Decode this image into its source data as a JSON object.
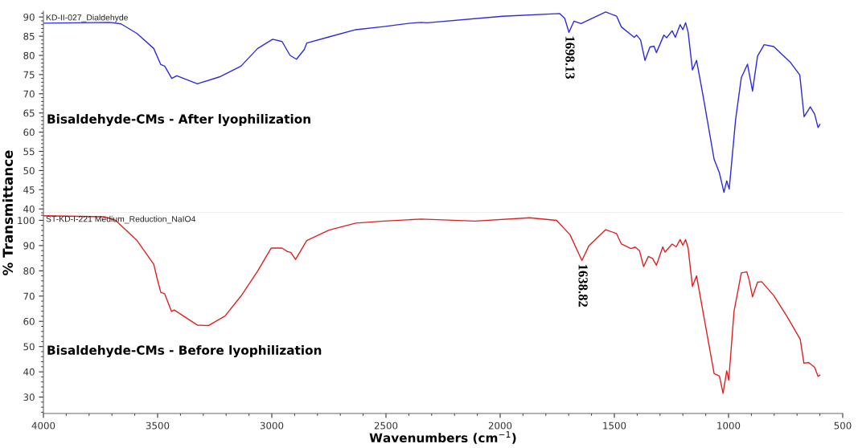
{
  "chart_data": [
    {
      "type": "line",
      "annotations": [
        "KD-II-027_Dialdehyde",
        "Bisaldehyde-CMs - After lyophilization",
        {
          "text": "1698.13",
          "x": 1699,
          "y": 86.0
        }
      ],
      "xlim": [
        4000,
        500
      ],
      "ylim": [
        39,
        91.5
      ],
      "yticks": [
        40,
        45,
        50,
        55,
        60,
        65,
        70,
        75,
        80,
        85,
        90
      ],
      "tick_labels": "y",
      "series": [
        {
          "color": "#2a2ae0",
          "x": [
            3997,
            3708,
            3660,
            3590,
            3517,
            3486,
            3469,
            3438,
            3416,
            3326,
            3229,
            3135,
            3062,
            2996,
            2955,
            2920,
            2892,
            2858,
            2847,
            2750,
            2632,
            2510,
            2392,
            2347,
            2319,
            1990,
            1740,
            1717,
            1699,
            1677,
            1646,
            1538,
            1490,
            1469,
            1413,
            1403,
            1385,
            1366,
            1344,
            1326,
            1316,
            1283,
            1271,
            1247,
            1233,
            1212,
            1200,
            1188,
            1177,
            1158,
            1140,
            1111,
            1063,
            1040,
            1020,
            1008,
            997,
            969,
            944,
            917,
            895,
            873,
            844,
            802,
            728,
            688,
            669,
            642,
            623,
            608,
            600
          ],
          "values": [
            88.4,
            88.6,
            88.2,
            85.7,
            81.8,
            77.6,
            77.2,
            74.0,
            74.7,
            72.6,
            74.4,
            77.2,
            81.8,
            84.2,
            83.6,
            80.0,
            79.0,
            81.5,
            83.2,
            84.8,
            86.7,
            87.5,
            88.4,
            88.6,
            88.5,
            90.2,
            90.9,
            89.6,
            86.0,
            88.9,
            88.3,
            91.3,
            90.2,
            87.4,
            84.7,
            85.3,
            84.0,
            78.7,
            82.2,
            82.4,
            80.7,
            85.3,
            84.6,
            86.4,
            84.7,
            88.0,
            86.7,
            88.5,
            86.1,
            76.2,
            78.7,
            69.3,
            52.9,
            49.4,
            44.3,
            47.3,
            45.2,
            63.3,
            74.2,
            77.7,
            70.7,
            79.8,
            82.8,
            82.3,
            78.1,
            74.9,
            64.0,
            66.6,
            64.7,
            61.2,
            62.0
          ]
        }
      ]
    },
    {
      "type": "line",
      "annotations": [
        "ST-KD-I-221 Medium_Reduction_NaIO4",
        "Bisaldehyde-CMs - Before lyophilization",
        {
          "text": "1638.82",
          "x": 1642,
          "y": 84.1
        }
      ],
      "xlabel": "Wavenumbers (cm$^{−1}$)",
      "ylabel": "% Transmittance",
      "xlim": [
        4000,
        500
      ],
      "xticks": [
        4000,
        3500,
        3000,
        2500,
        2000,
        1500,
        1000,
        500
      ],
      "ylim": [
        23.5,
        103
      ],
      "yticks": [
        30,
        40,
        50,
        60,
        70,
        80,
        90,
        100
      ],
      "series": [
        {
          "color": "#e02020",
          "x": [
            3997,
            3733,
            3684,
            3590,
            3517,
            3500,
            3486,
            3469,
            3439,
            3427,
            3326,
            3278,
            3205,
            3135,
            3062,
            3003,
            2955,
            2931,
            2917,
            2896,
            2847,
            2750,
            2632,
            2510,
            2347,
            2110,
            1871,
            1753,
            1694,
            1642,
            1611,
            1538,
            1491,
            1469,
            1427,
            1408,
            1390,
            1372,
            1351,
            1333,
            1316,
            1288,
            1278,
            1247,
            1229,
            1212,
            1200,
            1188,
            1177,
            1158,
            1140,
            1111,
            1063,
            1040,
            1024,
            1008,
            999,
            976,
            944,
            920,
            910,
            895,
            873,
            855,
            802,
            743,
            686,
            670,
            649,
            623,
            608,
            600
          ],
          "values": [
            101.8,
            101.4,
            100.0,
            92.0,
            82.6,
            76.2,
            71.5,
            70.9,
            63.9,
            64.5,
            58.5,
            58.3,
            62.1,
            70.0,
            79.9,
            89.0,
            89.0,
            87.6,
            87.3,
            84.5,
            92.0,
            96.1,
            98.9,
            99.7,
            100.5,
            99.7,
            101.0,
            100.0,
            94.3,
            84.1,
            90.0,
            96.3,
            94.8,
            90.6,
            88.8,
            89.4,
            88.0,
            81.7,
            85.7,
            84.9,
            82.2,
            89.5,
            87.4,
            90.6,
            89.5,
            92.4,
            90.1,
            92.4,
            89.0,
            73.8,
            78.0,
            63.4,
            39.3,
            38.3,
            31.5,
            40.4,
            36.7,
            63.9,
            79.2,
            79.6,
            76.5,
            69.7,
            75.5,
            75.7,
            70.2,
            61.8,
            52.9,
            43.4,
            43.7,
            41.8,
            38.2,
            38.7
          ]
        }
      ]
    }
  ]
}
